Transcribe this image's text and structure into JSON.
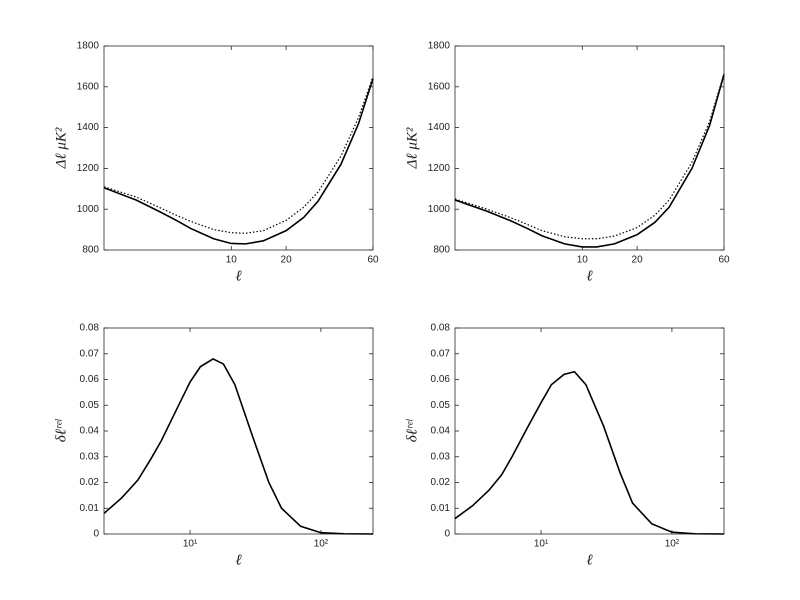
{
  "chart_data": [
    {
      "type": "line",
      "xscale": "log",
      "xlabel": "ℓ",
      "ylabel": "Δℓ μK²",
      "x": [
        2,
        3,
        4,
        5,
        6,
        8,
        10,
        12,
        15,
        20,
        25,
        30,
        40,
        50,
        60
      ],
      "series": [
        {
          "color": "#000000",
          "dash": "solid",
          "values": [
            1105,
            1045,
            990,
            945,
            905,
            855,
            832,
            830,
            845,
            895,
            960,
            1040,
            1220,
            1420,
            1640
          ]
        },
        {
          "color": "#000000",
          "dash": "dotted",
          "values": [
            1110,
            1060,
            1010,
            970,
            940,
            900,
            885,
            882,
            895,
            945,
            1010,
            1085,
            1260,
            1450,
            1650
          ]
        }
      ],
      "xlim": [
        2,
        60
      ],
      "xticks": [
        10,
        20,
        60
      ],
      "ylim": [
        800,
        1800
      ],
      "yticks": [
        800,
        1000,
        1200,
        1400,
        1600,
        1800
      ]
    },
    {
      "type": "line",
      "xscale": "log",
      "xlabel": "ℓ",
      "ylabel": "Δℓ μK²",
      "x": [
        2,
        3,
        4,
        5,
        6,
        8,
        10,
        12,
        15,
        20,
        25,
        30,
        40,
        50,
        60
      ],
      "series": [
        {
          "color": "#000000",
          "dash": "solid",
          "values": [
            1045,
            990,
            945,
            905,
            870,
            830,
            815,
            815,
            830,
            875,
            935,
            1010,
            1200,
            1410,
            1660
          ]
        },
        {
          "color": "#000000",
          "dash": "dotted",
          "values": [
            1050,
            1000,
            960,
            925,
            895,
            865,
            855,
            855,
            868,
            910,
            970,
            1045,
            1230,
            1430,
            1665
          ]
        }
      ],
      "xlim": [
        2,
        60
      ],
      "xticks": [
        10,
        20,
        60
      ],
      "ylim": [
        800,
        1800
      ],
      "yticks": [
        800,
        1000,
        1200,
        1400,
        1600,
        1800
      ]
    },
    {
      "type": "line",
      "xscale": "log",
      "xlabel": "ℓ",
      "ylabel": "δℓʳᵉˡ",
      "x": [
        2.2,
        3,
        4,
        5,
        6,
        8,
        10,
        12,
        15,
        18,
        22,
        30,
        40,
        50,
        70,
        100,
        150,
        250
      ],
      "series": [
        {
          "color": "#000000",
          "dash": "solid",
          "values": [
            0.008,
            0.014,
            0.021,
            0.029,
            0.036,
            0.049,
            0.059,
            0.065,
            0.068,
            0.066,
            0.058,
            0.038,
            0.02,
            0.01,
            0.003,
            0.0005,
            0.0001,
            0
          ]
        }
      ],
      "xlim": [
        2.2,
        250
      ],
      "xticks": [
        {
          "value": 10,
          "label": "10¹"
        },
        {
          "value": 100,
          "label": "10²"
        }
      ],
      "ylim": [
        0,
        0.08
      ],
      "yticks": [
        0,
        0.01,
        0.02,
        0.03,
        0.04,
        0.05,
        0.06,
        0.07,
        0.08
      ]
    },
    {
      "type": "line",
      "xscale": "log",
      "xlabel": "ℓ",
      "ylabel": "δℓʳᵉˡ",
      "x": [
        2.2,
        3,
        4,
        5,
        6,
        8,
        10,
        12,
        15,
        18,
        22,
        30,
        40,
        50,
        70,
        100,
        150,
        250
      ],
      "series": [
        {
          "color": "#000000",
          "dash": "solid",
          "values": [
            0.006,
            0.011,
            0.017,
            0.023,
            0.03,
            0.042,
            0.051,
            0.058,
            0.062,
            0.063,
            0.058,
            0.042,
            0.024,
            0.012,
            0.004,
            0.0007,
            0.0001,
            0
          ]
        }
      ],
      "xlim": [
        2.2,
        250
      ],
      "xticks": [
        {
          "value": 10,
          "label": "10¹"
        },
        {
          "value": 100,
          "label": "10²"
        }
      ],
      "ylim": [
        0,
        0.08
      ],
      "yticks": [
        0,
        0.01,
        0.02,
        0.03,
        0.04,
        0.05,
        0.06,
        0.07,
        0.08
      ]
    }
  ]
}
